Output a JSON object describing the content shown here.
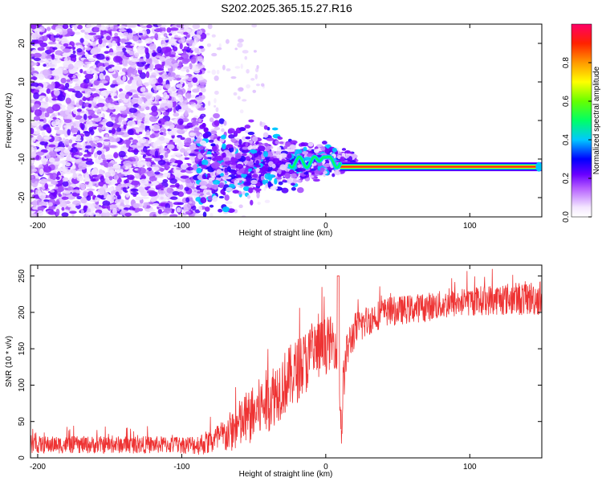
{
  "chart_data": [
    {
      "type": "heatmap",
      "title": "S202.2025.365.15.27.R16",
      "xlabel": "Height of straight line (km)",
      "ylabel": "Frequency (Hz)",
      "xlim": [
        -205,
        150
      ],
      "ylim": [
        -25,
        25
      ],
      "x_ticks": [
        -200,
        -100,
        0,
        100
      ],
      "x_tick_labels": [
        "-200",
        "-100",
        "0",
        "100"
      ],
      "y_ticks": [
        -20,
        -10,
        0,
        10,
        20
      ],
      "y_tick_labels": [
        "-20",
        "-10",
        "0",
        "10",
        "20"
      ],
      "colorbar": {
        "label": "Normalized spectral amplitude",
        "range": [
          0,
          1
        ],
        "ticks": [
          0,
          0.2,
          0.4,
          0.6,
          0.8
        ],
        "tick_labels": [
          "0.0",
          "0.2",
          "0.4",
          "0.6",
          "0.8"
        ]
      },
      "features": {
        "carrier_frequency_hz": -12,
        "carrier_start_km": 10,
        "carrier_end_km": 150,
        "carrier_peak_amplitude": 0.9,
        "diffuse_noise_region_km": [
          -205,
          -85
        ],
        "transition_region_km": [
          -90,
          20
        ]
      }
    },
    {
      "type": "line",
      "xlabel": "Height of straight line (km)",
      "ylabel": "SNR (10 * v/v)",
      "xlim": [
        -205,
        150
      ],
      "ylim": [
        0,
        265
      ],
      "x_ticks": [
        -200,
        -100,
        0,
        100
      ],
      "x_tick_labels": [
        "-200",
        "-100",
        "0",
        "100"
      ],
      "y_ticks": [
        0,
        50,
        100,
        150,
        200,
        250
      ],
      "y_tick_labels": [
        "0",
        "50",
        "100",
        "150",
        "200",
        "250"
      ],
      "color": "#ee3333",
      "series": [
        {
          "name": "SNR",
          "x": [
            -205,
            -180,
            -150,
            -120,
            -100,
            -90,
            -80,
            -70,
            -60,
            -50,
            -40,
            -30,
            -20,
            -10,
            0,
            5,
            8,
            10,
            11,
            12,
            15,
            20,
            30,
            40,
            60,
            80,
            100,
            120,
            150
          ],
          "y": [
            18,
            18,
            18,
            18,
            18,
            18,
            22,
            30,
            45,
            60,
            80,
            100,
            120,
            140,
            155,
            160,
            150,
            80,
            30,
            100,
            150,
            175,
            190,
            200,
            205,
            210,
            215,
            218,
            220
          ],
          "noise_amplitude": [
            12,
            12,
            12,
            12,
            12,
            14,
            18,
            25,
            35,
            40,
            45,
            45,
            45,
            45,
            40,
            35,
            30,
            30,
            30,
            30,
            28,
            25,
            22,
            20,
            20,
            20,
            20,
            22,
            25
          ]
        }
      ]
    }
  ]
}
